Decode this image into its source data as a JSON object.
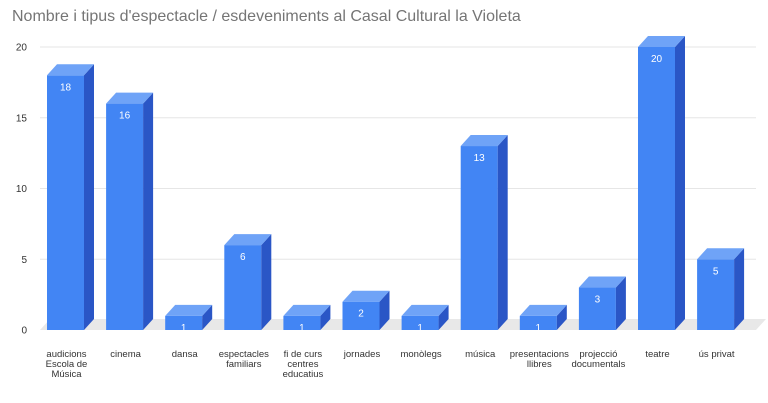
{
  "chart_data": {
    "type": "bar",
    "title": "Nombre i tipus d'espectacle / esdeveniments al Casal Cultural la Violeta",
    "categories": [
      [
        "audicions",
        "Escola de",
        "Música"
      ],
      [
        "cinema"
      ],
      [
        "dansa"
      ],
      [
        "espectacles",
        "familiars"
      ],
      [
        "fi de curs",
        "centres",
        "educatius"
      ],
      [
        "jornades"
      ],
      [
        "monòlegs"
      ],
      [
        "música"
      ],
      [
        "presentacions",
        "llibres"
      ],
      [
        "projecció",
        "documentals"
      ],
      [
        "teatre"
      ],
      [
        "ús privat"
      ]
    ],
    "values": [
      18,
      16,
      1,
      6,
      1,
      2,
      1,
      13,
      1,
      3,
      20,
      5
    ],
    "ylim": [
      0,
      20
    ],
    "yticks": [
      0,
      5,
      10,
      15,
      20
    ],
    "xlabel": "",
    "ylabel": "",
    "grid": true,
    "three_d": true,
    "colors": {
      "bar_front": "#4285f4",
      "bar_top": "#6fa3f7",
      "bar_side": "#2a56c6",
      "floor": "#e8e8e8",
      "grid": "#e6e6e6",
      "data_label": "#ffffff"
    }
  }
}
